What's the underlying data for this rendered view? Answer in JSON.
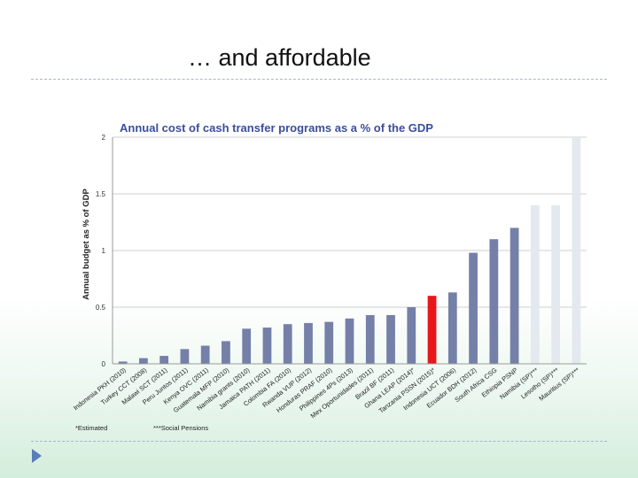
{
  "slide": {
    "title": "… and affordable"
  },
  "colors": {
    "default": "#7580a8",
    "highlight": "#e8161b",
    "estimated": "#e4e8ef",
    "grid": "#cfcfcf",
    "title": "#3a4e9c"
  },
  "chart_data": {
    "type": "bar",
    "title": "Annual cost of cash transfer programs as a % of the GDP",
    "xlabel": "",
    "ylabel": "Annual budget as % of GDP",
    "ylim": [
      0,
      2
    ],
    "yticks": [
      {
        "value": 0,
        "label": "0"
      },
      {
        "value": 0.5,
        "label": "0.5"
      },
      {
        "value": 1,
        "label": "1"
      },
      {
        "value": 1.5,
        "label": "1.5"
      },
      {
        "value": 2,
        "label": "2"
      }
    ],
    "grid": true,
    "categories": [
      "Indonesia PKH (2010)",
      "Turkey CCT (2008)",
      "Malawi SCT (2011)",
      "Peru Juntos (2011)",
      "Kenya OVC (2011)",
      "Guatemala MFP (2010)",
      "Namibia grants (2010)",
      "Jamaica PATH (2011)",
      "Colombia FA (2010)",
      "Rwanda VUP (2012)",
      "Honduras PRAF (2010)",
      "Philippines 4Ps (2013)",
      "Mex Oportunidades (2011)",
      "Brazil BF (2011)",
      "Ghana LEAP (2014)*",
      "Tanzania PSSN (2015)*",
      "Indonesia UCT (2006)",
      "Ecuador BDH (2012)",
      "South Africa CSG",
      "Ethiopia PSNP",
      "Namibia (SP)***",
      "Lesotho (SP)***",
      "Mauritius (SP)***"
    ],
    "values": [
      0.02,
      0.05,
      0.07,
      0.13,
      0.16,
      0.2,
      0.31,
      0.32,
      0.35,
      0.36,
      0.37,
      0.4,
      0.43,
      0.43,
      0.5,
      0.6,
      0.63,
      0.98,
      1.1,
      1.2,
      1.4,
      1.4,
      2.0
    ],
    "bar_style": [
      "default",
      "default",
      "default",
      "default",
      "default",
      "default",
      "default",
      "default",
      "default",
      "default",
      "default",
      "default",
      "default",
      "default",
      "default",
      "highlight",
      "default",
      "default",
      "default",
      "default",
      "estimated",
      "estimated",
      "estimated"
    ],
    "footnotes": {
      "estimated": "*Estimated",
      "social_pensions": "***Social Pensions"
    }
  }
}
